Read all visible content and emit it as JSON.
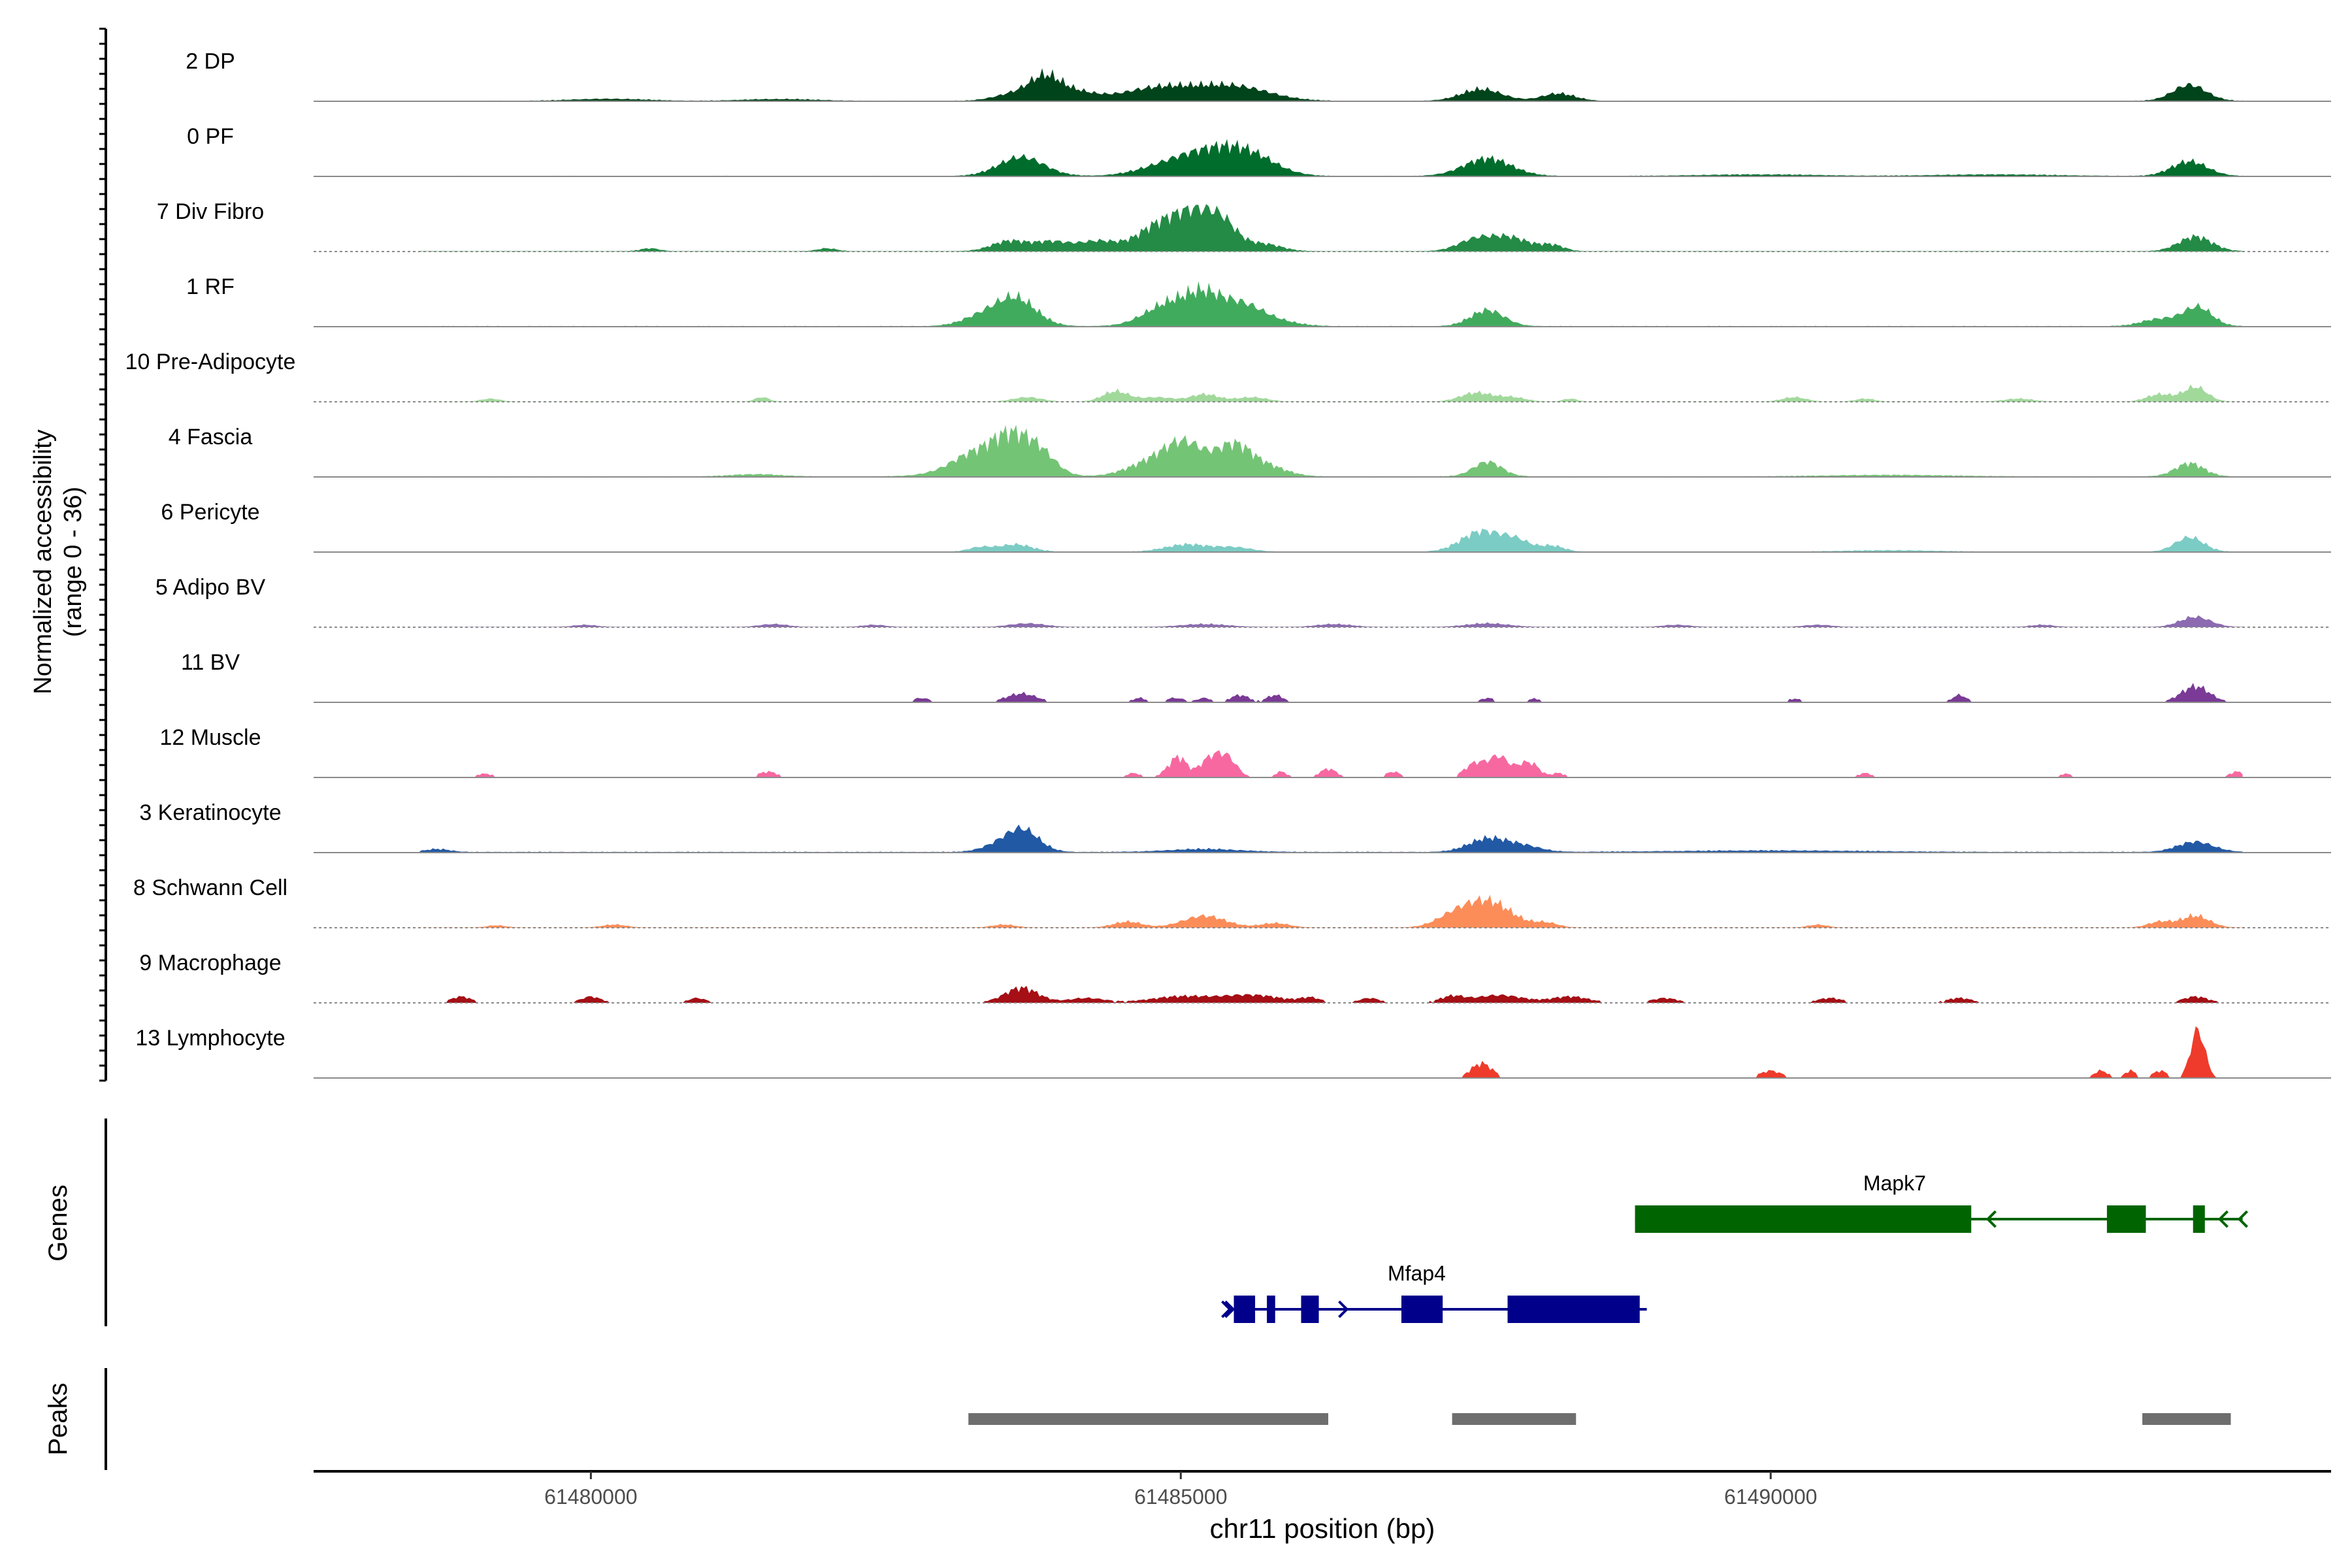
{
  "chart_data": {
    "type": "area",
    "title": "",
    "ylabel": "Normalized accessibility",
    "ylabel_range": "(range 0 - 36)",
    "ylim": [
      0,
      36
    ],
    "xlabel": "chr11 position (bp)",
    "xlim": [
      61477650,
      61494750
    ],
    "x_ticks": [
      61480000,
      61485000,
      61490000
    ],
    "x_tick_labels": [
      "61480000",
      "61485000",
      "61490000"
    ],
    "track_start": 61478550,
    "track_end": 61494000,
    "tracks": [
      {
        "name": "2 DP",
        "color": "#00441b",
        "base": 0.4,
        "dashed": false,
        "floor": 0,
        "peaks": [
          [
            61483600,
            5,
            170
          ],
          [
            61483850,
            14,
            130
          ],
          [
            61484100,
            6,
            180
          ],
          [
            61485000,
            7,
            330
          ],
          [
            61485500,
            8,
            280
          ],
          [
            61487550,
            8,
            170
          ],
          [
            61488200,
            5,
            140
          ],
          [
            61493550,
            11,
            140
          ],
          [
            61484700,
            4,
            260
          ],
          [
            61480150,
            1.4,
            300
          ],
          [
            61481600,
            1.2,
            300
          ]
        ]
      },
      {
        "name": "0 PF",
        "color": "#006d2c",
        "base": 0.4,
        "dashed": false,
        "floor": 0,
        "peaks": [
          [
            61483650,
            13,
            190
          ],
          [
            61484950,
            9,
            260
          ],
          [
            61485300,
            12,
            230
          ],
          [
            61485600,
            12,
            220
          ],
          [
            61487600,
            12,
            200
          ],
          [
            61493550,
            10,
            150
          ],
          [
            61489900,
            1,
            500
          ],
          [
            61491900,
            1,
            500
          ]
        ]
      },
      {
        "name": "7 Div Fibro",
        "color": "#238b45",
        "base": 0.3,
        "dashed": true,
        "floor": 0,
        "peaks": [
          [
            61483550,
            7,
            150
          ],
          [
            61483900,
            6,
            140
          ],
          [
            61484300,
            7,
            180
          ],
          [
            61484800,
            16,
            170
          ],
          [
            61485100,
            23,
            160
          ],
          [
            61485350,
            18,
            130
          ],
          [
            61485700,
            5,
            150
          ],
          [
            61487500,
            8,
            150
          ],
          [
            61487800,
            9,
            160
          ],
          [
            61488150,
            4,
            100
          ],
          [
            61493600,
            10,
            140
          ],
          [
            61482000,
            2,
            80
          ],
          [
            61480500,
            2,
            80
          ]
        ]
      },
      {
        "name": "1 RF",
        "color": "#41ab5d",
        "base": 0.5,
        "dashed": false,
        "floor": 0,
        "peaks": [
          [
            61483600,
            19,
            170
          ],
          [
            61483300,
            6,
            160
          ],
          [
            61484900,
            15,
            200
          ],
          [
            61485200,
            17,
            150
          ],
          [
            61485500,
            13,
            170
          ],
          [
            61487600,
            11,
            140
          ],
          [
            61493300,
            5,
            150
          ],
          [
            61493620,
            13,
            120
          ],
          [
            61485750,
            4,
            200
          ]
        ]
      },
      {
        "name": "10 Pre-Adipocyte",
        "color": "#a1d99b",
        "base": 0.2,
        "dashed": true,
        "floor": 0,
        "peaks": [
          [
            61483700,
            3,
            120
          ],
          [
            61484450,
            7,
            110
          ],
          [
            61484800,
            3,
            130
          ],
          [
            61485200,
            5,
            120
          ],
          [
            61485600,
            3,
            130
          ],
          [
            61487500,
            6,
            130
          ],
          [
            61487800,
            3,
            120
          ],
          [
            61493300,
            5,
            110
          ],
          [
            61493600,
            10,
            100
          ],
          [
            61481450,
            3,
            60
          ],
          [
            61479150,
            2,
            80
          ],
          [
            61490200,
            3,
            100
          ],
          [
            61492100,
            2,
            120
          ],
          [
            61490800,
            2,
            80
          ],
          [
            61488300,
            2,
            60
          ]
        ]
      },
      {
        "name": "4 Fascia",
        "color": "#74c476",
        "base": 0.5,
        "dashed": false,
        "floor": 0,
        "peaks": [
          [
            61483250,
            14,
            180
          ],
          [
            61483550,
            24,
            150
          ],
          [
            61483800,
            16,
            140
          ],
          [
            61484800,
            11,
            220
          ],
          [
            61485050,
            18,
            160
          ],
          [
            61485450,
            21,
            150
          ],
          [
            61485750,
            6,
            160
          ],
          [
            61487600,
            10,
            120
          ],
          [
            61493550,
            9,
            120
          ],
          [
            61483000,
            2,
            200
          ],
          [
            61481400,
            1.5,
            200
          ],
          [
            61491000,
            1,
            500
          ]
        ]
      },
      {
        "name": "6 Pericyte",
        "color": "#7bccc4",
        "base": 0.3,
        "dashed": false,
        "floor": 0,
        "peaks": [
          [
            61483600,
            5,
            140
          ],
          [
            61483300,
            3,
            100
          ],
          [
            61485050,
            5,
            180
          ],
          [
            61485450,
            3,
            150
          ],
          [
            61487550,
            14,
            170
          ],
          [
            61487850,
            7,
            120
          ],
          [
            61488150,
            4,
            100
          ],
          [
            61493550,
            10,
            120
          ],
          [
            61491000,
            1,
            400
          ]
        ]
      },
      {
        "name": "5 Adipo BV",
        "color": "#8c6bb1",
        "base": 0.2,
        "dashed": true,
        "floor": 0,
        "peaks": [
          [
            61483700,
            2.5,
            150
          ],
          [
            61485200,
            2,
            200
          ],
          [
            61487600,
            2.5,
            180
          ],
          [
            61493600,
            7,
            130
          ],
          [
            61479950,
            1.5,
            100
          ],
          [
            61481550,
            2,
            120
          ],
          [
            61482400,
            1.5,
            100
          ],
          [
            61486300,
            2,
            150
          ],
          [
            61489200,
            1.5,
            120
          ],
          [
            61490400,
            1.5,
            120
          ],
          [
            61492300,
            1.5,
            100
          ]
        ]
      },
      {
        "name": "11 BV",
        "color": "#7a3a96",
        "base": 0,
        "dashed": false,
        "floor": 1.5,
        "peaks": [
          [
            61483650,
            6,
            130
          ],
          [
            61485500,
            5,
            80
          ],
          [
            61485800,
            5,
            70
          ],
          [
            61493600,
            11,
            120
          ],
          [
            61482800,
            3,
            70
          ],
          [
            61484950,
            3,
            80
          ],
          [
            61487600,
            3,
            60
          ],
          [
            61490200,
            2.5,
            60
          ],
          [
            61491600,
            5,
            60
          ],
          [
            61485200,
            3,
            60
          ],
          [
            61484650,
            3,
            60
          ],
          [
            61488000,
            2.5,
            60
          ]
        ]
      },
      {
        "name": "12 Muscle",
        "color": "#f768a1",
        "base": 0,
        "dashed": false,
        "floor": 1.5,
        "peaks": [
          [
            61484950,
            9,
            80
          ],
          [
            61485250,
            13,
            90
          ],
          [
            61485400,
            12,
            80
          ],
          [
            61487500,
            10,
            90
          ],
          [
            61487700,
            14,
            80
          ],
          [
            61487900,
            8,
            70
          ],
          [
            61481500,
            4,
            80
          ],
          [
            61479100,
            2.5,
            80
          ],
          [
            61486250,
            6,
            70
          ],
          [
            61486800,
            4,
            60
          ],
          [
            61493950,
            4,
            60
          ],
          [
            61484600,
            3,
            60
          ],
          [
            61485000,
            6,
            60
          ],
          [
            61485850,
            4,
            50
          ],
          [
            61488200,
            3,
            60
          ],
          [
            61490800,
            3,
            60
          ],
          [
            61492500,
            2.5,
            60
          ],
          [
            61488000,
            6,
            60
          ]
        ]
      },
      {
        "name": "3 Keratinocyte",
        "color": "#2259a5",
        "base": 0.6,
        "dashed": false,
        "floor": 0,
        "peaks": [
          [
            61483650,
            16,
            140
          ],
          [
            61483400,
            3,
            120
          ],
          [
            61487600,
            9,
            160
          ],
          [
            61487900,
            4,
            150
          ],
          [
            61493600,
            7,
            150
          ],
          [
            61478700,
            2,
            100
          ],
          [
            61485200,
            2,
            300
          ],
          [
            61490000,
            1,
            800
          ]
        ]
      },
      {
        "name": "8 Schwann Cell",
        "color": "#fc8d59",
        "base": 0.2,
        "dashed": true,
        "floor": 0,
        "peaks": [
          [
            61487600,
            18,
            200
          ],
          [
            61487300,
            6,
            150
          ],
          [
            61485200,
            8,
            180
          ],
          [
            61484550,
            4,
            120
          ],
          [
            61485800,
            3,
            120
          ],
          [
            61493300,
            4,
            100
          ],
          [
            61493600,
            8,
            120
          ],
          [
            61488100,
            3,
            100
          ],
          [
            61480200,
            2,
            100
          ],
          [
            61483500,
            2,
            100
          ],
          [
            61490400,
            2,
            80
          ],
          [
            61479200,
            1.5,
            80
          ]
        ]
      },
      {
        "name": "9 Macrophage",
        "color": "#a50f15",
        "base": 0.4,
        "dashed": true,
        "floor": 1.2,
        "peaks": [
          [
            61483650,
            10,
            140
          ],
          [
            61484200,
            3,
            150
          ],
          [
            61485000,
            4,
            250
          ],
          [
            61485600,
            5,
            250
          ],
          [
            61487300,
            4,
            100
          ],
          [
            61487700,
            5,
            200
          ],
          [
            61488300,
            4,
            150
          ],
          [
            61493600,
            4,
            100
          ],
          [
            61478900,
            4,
            80
          ],
          [
            61480000,
            4,
            80
          ],
          [
            61480900,
            3,
            70
          ],
          [
            61489100,
            3,
            100
          ],
          [
            61490500,
            3,
            100
          ],
          [
            61491600,
            3,
            100
          ],
          [
            61486600,
            3,
            80
          ],
          [
            61486100,
            3,
            80
          ]
        ]
      },
      {
        "name": "13 Lymphocyte",
        "color": "#ef3b2c",
        "base": 0,
        "dashed": false,
        "floor": 2,
        "peaks": [
          [
            61487550,
            10,
            90
          ],
          [
            61490000,
            5,
            90
          ],
          [
            61493620,
            33,
            60
          ],
          [
            61492800,
            5,
            60
          ],
          [
            61493050,
            5,
            50
          ],
          [
            61493300,
            5,
            60
          ]
        ]
      }
    ],
    "genes_label": "Genes",
    "genes": [
      {
        "name": "Mapk7",
        "color": "#006400",
        "strand": "-",
        "start": 61488850,
        "end": 61494000,
        "exons": [
          [
            61488850,
            61491700
          ],
          [
            61492850,
            61493180
          ],
          [
            61493580,
            61493680
          ]
        ]
      },
      {
        "name": "Mfap4",
        "color": "#00008b",
        "strand": "+",
        "start": 61485400,
        "end": 61488950,
        "exons": [
          [
            61485450,
            61485630
          ],
          [
            61485730,
            61485800
          ],
          [
            61486020,
            61486170
          ],
          [
            61486870,
            61487220
          ],
          [
            61487770,
            61488890
          ]
        ]
      }
    ],
    "peaks_label": "Peaks",
    "peaks": [
      [
        61483200,
        61486250
      ],
      [
        61487300,
        61488350
      ],
      [
        61493150,
        61493900
      ]
    ]
  }
}
